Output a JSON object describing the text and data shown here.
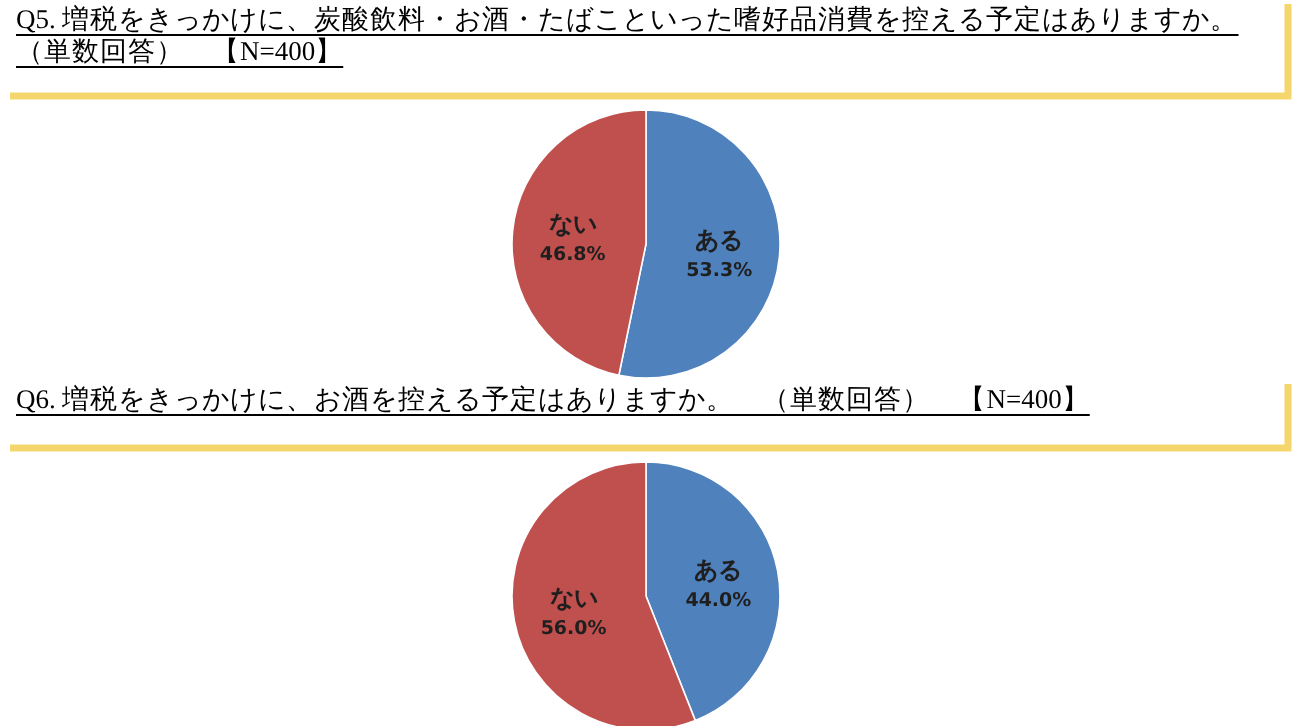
{
  "chart_data": [
    {
      "type": "pie",
      "title": "Q5. 増税をきっかけに、炭酸飲料・お酒・たばこといった嗜好品消費を控える予定はありますか。",
      "subtitle": "（単数回答）　【N=400】",
      "categories": [
        "ある",
        "ない"
      ],
      "values": [
        53.3,
        46.8
      ],
      "value_labels": [
        "53.3%",
        "46.8%"
      ],
      "colors": [
        "#4f81bd",
        "#c0504d"
      ]
    },
    {
      "type": "pie",
      "title": "Q6. 増税をきっかけに、お酒を控える予定はありますか。　（単数回答）　【N=400】",
      "categories": [
        "ある",
        "ない"
      ],
      "values": [
        44.0,
        56.0
      ],
      "value_labels": [
        "44.0%",
        "56.0%"
      ],
      "colors": [
        "#4f81bd",
        "#c0504d"
      ]
    }
  ]
}
